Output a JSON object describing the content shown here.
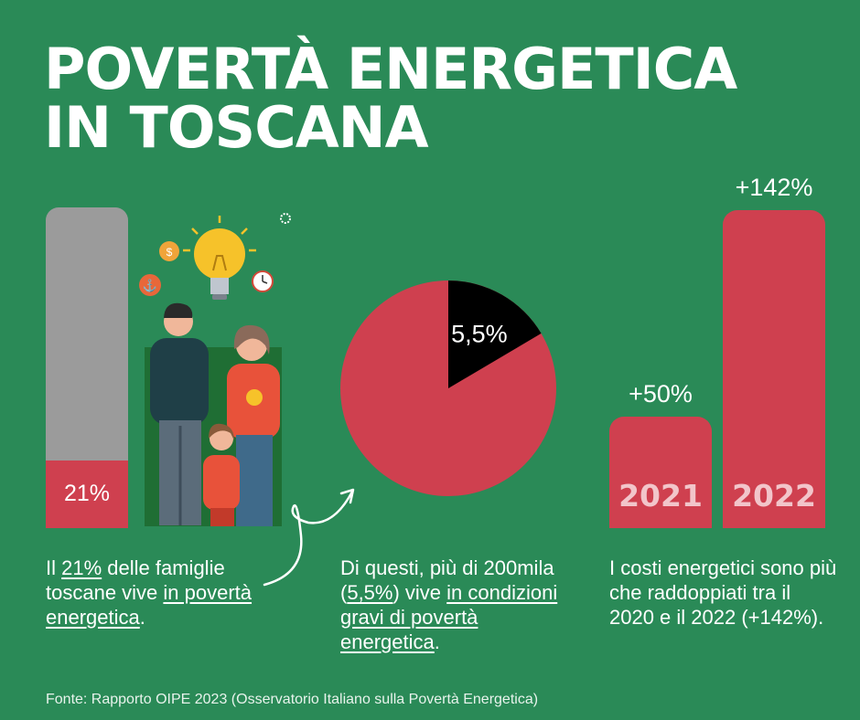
{
  "title": {
    "line1": "POVERTÀ ENERGETICA",
    "line2": "IN TOSCANA"
  },
  "chart_data": [
    {
      "type": "bar",
      "categories": [
        "famiglie in povertà energetica"
      ],
      "values": [
        21
      ],
      "value_label": "21%",
      "ylim": [
        0,
        100
      ],
      "colors": {
        "fill": "#cf404f",
        "background": "#9b9b9b"
      }
    },
    {
      "type": "pie",
      "slices": [
        {
          "label": "5,5%",
          "value": 5.5,
          "color": "#000000"
        },
        {
          "label": "",
          "value": 94.5,
          "color": "#cf404f"
        }
      ]
    },
    {
      "type": "bar",
      "categories": [
        "2021",
        "2022"
      ],
      "values": [
        50,
        142
      ],
      "value_labels": [
        "+50%",
        "+142%"
      ],
      "color": "#cf404f"
    }
  ],
  "captions": {
    "c1": {
      "pre": "Il ",
      "u1": "21%",
      "mid": " delle famiglie toscane vive ",
      "u2": "in povertà energetica",
      "post": "."
    },
    "c2": {
      "pre": "Di questi, più di 200mila (",
      "u1": "5,5%",
      "mid": ") vive ",
      "u2": "in condizioni gravi di povertà energetica",
      "post": "."
    },
    "c3": "I costi energetici sono più che raddoppiati tra il 2020 e il 2022 (+142%)."
  },
  "source": "Fonte: Rapporto OIPE 2023 (Osservatorio Italiano sulla Povertà Energetica)",
  "illustration": {
    "icons": [
      "family-icon",
      "lightbulb-icon",
      "clock-icon",
      "coin-icon",
      "anchor-icon",
      "gear-icon"
    ]
  },
  "colors": {
    "background": "#2a8a57",
    "accent": "#cf404f",
    "grey": "#9b9b9b",
    "dark": "#000000"
  }
}
